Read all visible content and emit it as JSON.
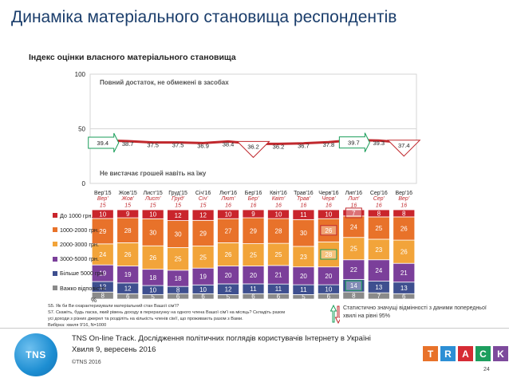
{
  "page": {
    "title": "Динаміка матеріального становища респондентів",
    "subtitle": "Індекс оцінки власного матеріального становища",
    "pct_label": "%",
    "notes": [
      "S5. Як би Ви охарактеризували матеріальний стан Вашої сім'ї?",
      "S7. Скажіть, будь ласка, який рівень доходу в перерахунку на одного члена Вашої сім'ї на місяць? Складіть разом усі доходи з різних джерел та розділіть на кількість членів сім'ї, що проживають разом з Вами.",
      "Вибірка: хвиля 9'16, N=1000"
    ],
    "significance_note": "Статистично значущі відмінності з даними попередньої хвилі на рівні 95%",
    "footer_line1": "TNS On-line Track. Дослідження політичних поглядів користувачів Інтернету в Україні",
    "footer_line2": "Хвиля 9, вересень 2016",
    "copyright": "©TNS 2016",
    "page_number": "24",
    "logo_text": "TNS",
    "track_letters": [
      "T",
      "R",
      "A",
      "C",
      "K"
    ],
    "track_colors": [
      "#e8722a",
      "#2d8fd5",
      "#d62b34",
      "#1d9e5e",
      "#7d4a9c"
    ]
  },
  "chart_data": [
    {
      "type": "line",
      "title": "Індекс оцінки власного матеріального становища",
      "categories": [
        "Вер'15",
        "Жов'15",
        "Лист'15",
        "Груд'15",
        "Січ'16",
        "Лют'16",
        "Бер'16",
        "Квіт'16",
        "Трав'16",
        "Черв'16",
        "Лип'16",
        "Сер'16",
        "Вер'16"
      ],
      "values": [
        39.4,
        38.7,
        37.5,
        37.5,
        36.9,
        38.4,
        36.2,
        36.2,
        36.7,
        37.8,
        39.7,
        39.3,
        37.4
      ],
      "value_labels": [
        "39.4",
        "38.7",
        "37.5",
        "37.5",
        "36.9",
        "38.4",
        "36.2",
        "36.2",
        "36.7",
        "37.8",
        "39.7",
        "39.3",
        "37.4"
      ],
      "ylim": [
        0,
        100
      ],
      "yticks": [
        "0",
        "50",
        "100"
      ],
      "top_annotation": "Повний достаток, не обмежені в засобах",
      "bottom_annotation": "Не вистачає грошей навіть на їжу",
      "line_color": "#c0282d",
      "significant": [
        {
          "index": 0,
          "direction": "up"
        },
        {
          "index": 6,
          "direction": "down"
        },
        {
          "index": 10,
          "direction": "up"
        },
        {
          "index": 12,
          "direction": "down"
        }
      ]
    },
    {
      "type": "bar",
      "stacked": true,
      "categories": [
        "Вер' 15",
        "Жов' 15",
        "Лист' 15",
        "Груд' 15",
        "Січ' 15",
        "Лют' 16",
        "Бер' 16",
        "Квіт' 16",
        "Трав' 16",
        "Черв' 16",
        "Лип' 16",
        "Сер' 16",
        "Вер' 16"
      ],
      "series": [
        {
          "name": "Важко відповісти",
          "color": "#8a8a8a",
          "values": [
            8,
            6,
            5,
            6,
            6,
            5,
            6,
            6,
            5,
            6,
            8,
            7,
            6
          ]
        },
        {
          "name": "Більше 5000 грн.",
          "color": "#3e4f8f",
          "values": [
            12,
            12,
            10,
            8,
            10,
            12,
            11,
            11,
            11,
            10,
            14,
            13,
            13
          ]
        },
        {
          "name": "3000-5000 грн.",
          "color": "#7b3f9a",
          "values": [
            19,
            19,
            18,
            18,
            19,
            20,
            20,
            21,
            20,
            20,
            22,
            24,
            21
          ]
        },
        {
          "name": "2000-3000 грн.",
          "color": "#f2a43a",
          "values": [
            24,
            26,
            26,
            25,
            25,
            26,
            25,
            25,
            23,
            28,
            25,
            23,
            26
          ]
        },
        {
          "name": "1000-2000 грн.",
          "color": "#e8722a",
          "values": [
            29,
            28,
            30,
            30,
            29,
            27,
            29,
            28,
            30,
            26,
            24,
            25,
            26
          ]
        },
        {
          "name": "До 1000 грн.",
          "color": "#c9252c",
          "values": [
            10,
            9,
            10,
            12,
            12,
            10,
            9,
            10,
            11,
            10,
            7,
            8,
            8
          ]
        }
      ],
      "significant": [
        {
          "series": "2000-3000 грн.",
          "index": 9,
          "direction": "up"
        },
        {
          "series": "1000-2000 грн.",
          "index": 9,
          "direction": "down"
        },
        {
          "series": "Більше 5000 грн.",
          "index": 10,
          "direction": "up"
        },
        {
          "series": "До 1000 грн.",
          "index": 10,
          "direction": "down"
        }
      ]
    }
  ]
}
